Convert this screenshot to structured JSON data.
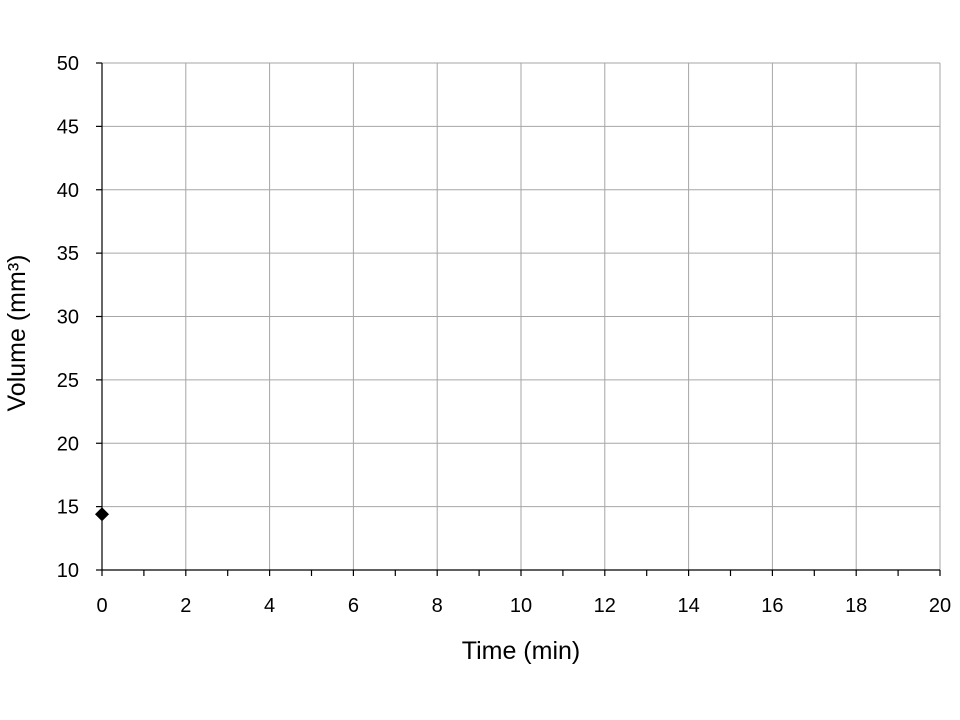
{
  "chart_data": {
    "type": "scatter",
    "title": "",
    "xlabel": "Time (min)",
    "ylabel": "Volume (mm³)",
    "xlim": [
      0,
      20
    ],
    "ylim": [
      10,
      50
    ],
    "x_major_step": 2,
    "x_minor_step": 1,
    "y_major_step": 5,
    "x_ticks": [
      "0",
      "2",
      "4",
      "6",
      "8",
      "10",
      "12",
      "14",
      "16",
      "18",
      "20"
    ],
    "y_ticks": [
      "10",
      "15",
      "20",
      "25",
      "30",
      "35",
      "40",
      "45",
      "50"
    ],
    "grid": true,
    "legend": "none",
    "marker": "diamond",
    "marker_color": "#000000",
    "grid_color": "#a6a6a6",
    "series": [
      {
        "points": [
          {
            "x": 0,
            "y": 14.4
          }
        ]
      }
    ]
  }
}
